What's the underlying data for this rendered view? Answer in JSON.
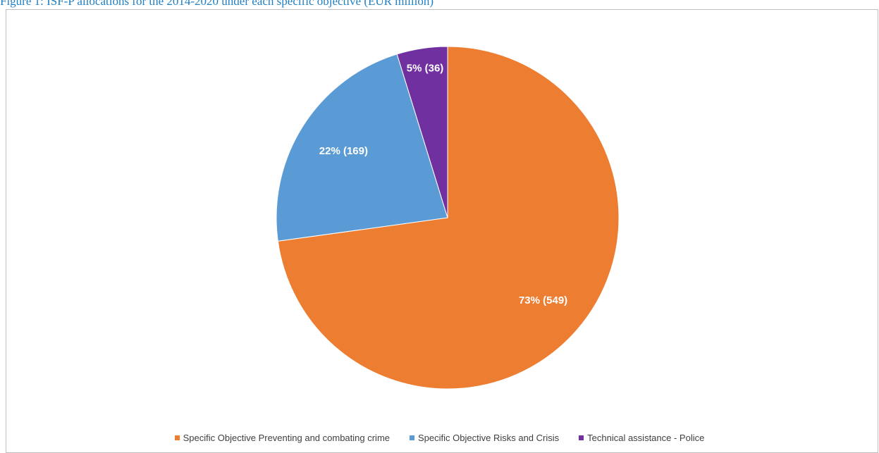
{
  "caption": "Figure 1: ISF-P allocations for the 2014-2020 under each specific objective (EUR million)",
  "chart_data": {
    "type": "pie",
    "title": "",
    "slices": [
      {
        "name": "Specific Objective Preventing and combating crime",
        "value": 549,
        "percent": 73,
        "label": "73% (549)",
        "color": "#ED7D31"
      },
      {
        "name": "Specific Objective Risks and Crisis",
        "value": 169,
        "percent": 22,
        "label": "22% (169)",
        "color": "#5B9BD5"
      },
      {
        "name": "Technical assistance - Police",
        "value": 36,
        "percent": 5,
        "label": "5% (36)",
        "color": "#7030A0"
      }
    ],
    "legend_position": "bottom",
    "start_angle": "12 o'clock",
    "direction": "clockwise"
  }
}
